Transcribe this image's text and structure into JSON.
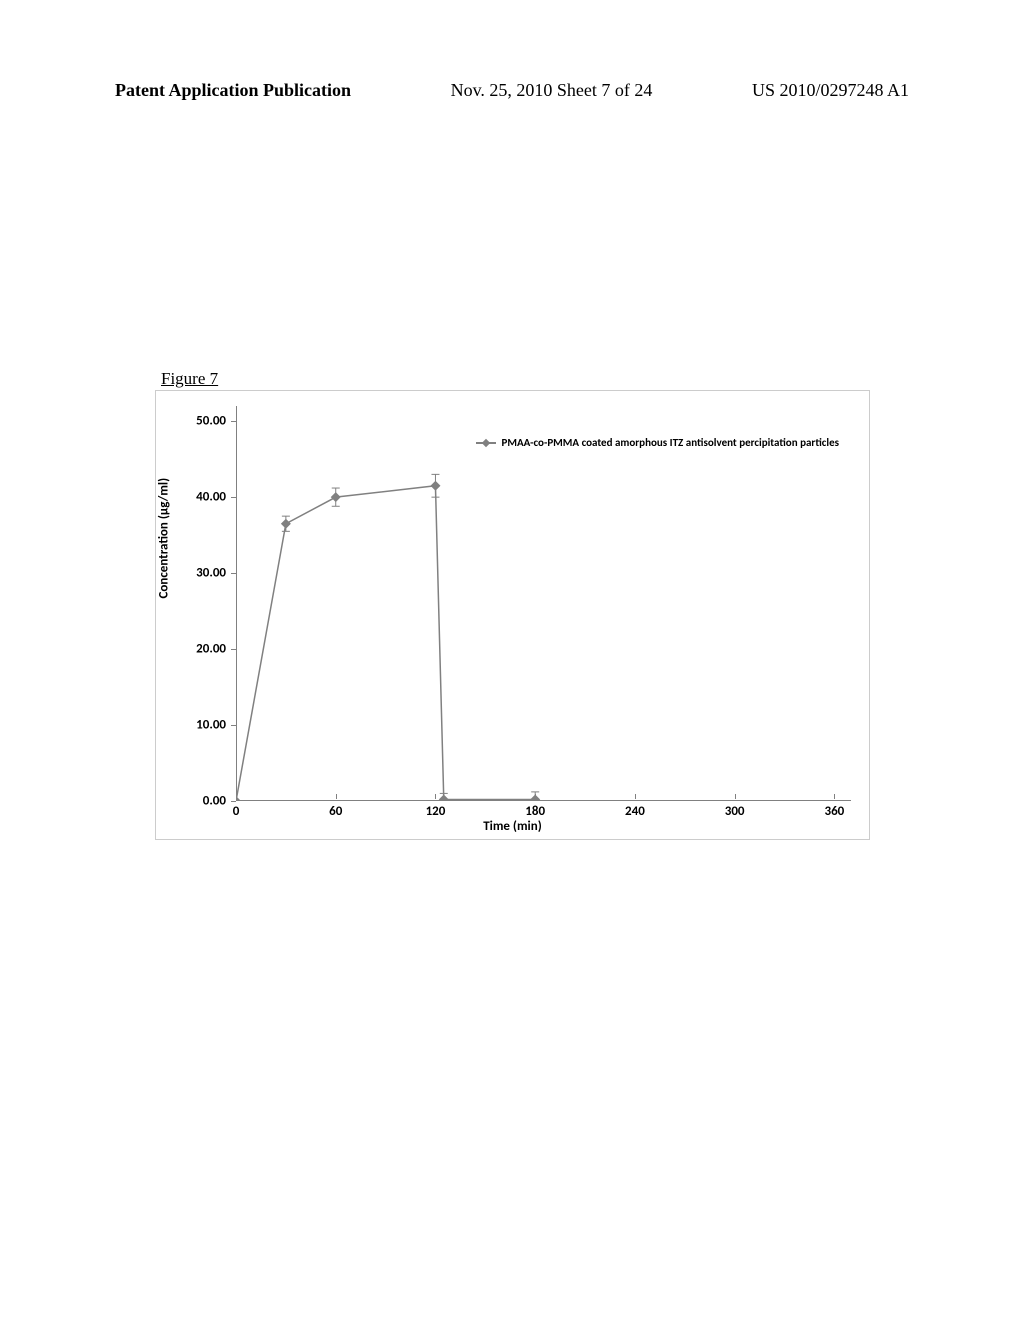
{
  "header": {
    "left": "Patent Application Publication",
    "center": "Nov. 25, 2010  Sheet 7 of 24",
    "right": "US 2010/0297248 A1"
  },
  "figure": {
    "label": "Figure 7",
    "type": "line",
    "legend_text": "PMAA-co-PMMA coated amorphous ITZ antisolvent percipitation particles",
    "x_axis_label": "Time (min)",
    "y_axis_label": "Concentration (µg/ml)",
    "x_ticks": [
      0,
      60,
      120,
      180,
      240,
      300,
      360
    ],
    "y_ticks": [
      "0.00",
      "10.00",
      "20.00",
      "30.00",
      "40.00",
      "50.00"
    ],
    "y_tick_values": [
      0,
      10,
      20,
      30,
      40,
      50
    ],
    "xlim": [
      0,
      370
    ],
    "ylim": [
      0,
      52
    ],
    "line_color": "#808080",
    "marker_color": "#808080",
    "line_width": 1.5,
    "marker_size": 5,
    "background_color": "#ffffff",
    "border_color": "#cccccc",
    "font_family": "Calibri",
    "label_fontsize": 13,
    "tick_fontsize": 13,
    "legend_fontsize": 11,
    "data_points": [
      {
        "x": 0,
        "y": 0.0,
        "err": 0
      },
      {
        "x": 30,
        "y": 36.5,
        "err": 1.0
      },
      {
        "x": 60,
        "y": 40.0,
        "err": 1.2
      },
      {
        "x": 120,
        "y": 41.5,
        "err": 1.5
      },
      {
        "x": 125,
        "y": 0.2,
        "err": 0.8
      },
      {
        "x": 180,
        "y": 0.2,
        "err": 1.0
      }
    ]
  }
}
